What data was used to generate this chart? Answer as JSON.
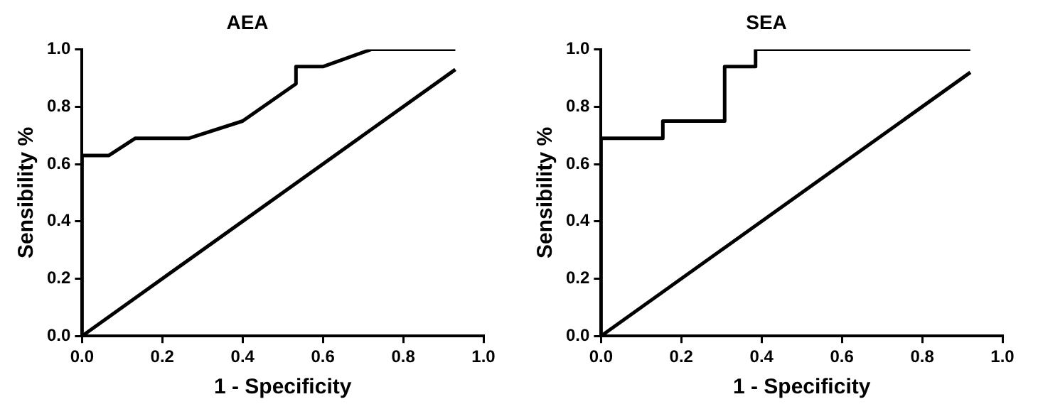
{
  "chart_data": [
    {
      "type": "line",
      "title": "AEA",
      "xlabel": "1 - Specificity",
      "ylabel": "Sensibility %",
      "xlim": [
        0,
        1
      ],
      "ylim": [
        0,
        1
      ],
      "xticks": [
        {
          "value": 0,
          "label": "0.0"
        },
        {
          "value": 0.2,
          "label": "0.2"
        },
        {
          "value": 0.4,
          "label": "0.4"
        },
        {
          "value": 0.6,
          "label": "0.6"
        },
        {
          "value": 0.8,
          "label": "0.8"
        },
        {
          "value": 1,
          "label": "1.0"
        }
      ],
      "yticks": [
        {
          "value": 0,
          "label": "0.0"
        },
        {
          "value": 0.2,
          "label": "0.2"
        },
        {
          "value": 0.4,
          "label": "0.4"
        },
        {
          "value": 0.6,
          "label": "0.6"
        },
        {
          "value": 0.8,
          "label": "0.8"
        },
        {
          "value": 1,
          "label": "1.0"
        }
      ],
      "grid": false,
      "legend": false,
      "marker": "none",
      "line_style": "solid",
      "series": [
        {
          "color": "#000000",
          "x": [
            0,
            0,
            0.067,
            0.133,
            0.267,
            0.4,
            0.533,
            0.533,
            0.6,
            0.72,
            0.93
          ],
          "values": [
            0,
            0.63,
            0.63,
            0.69,
            0.69,
            0.75,
            0.88,
            0.94,
            0.94,
            1,
            1
          ]
        },
        {
          "color": "#000000",
          "x": [
            0,
            0.93
          ],
          "values": [
            0,
            0.93
          ]
        }
      ]
    },
    {
      "type": "line",
      "title": "SEA",
      "xlabel": "1 - Specificity",
      "ylabel": "Sensibility %",
      "xlim": [
        0,
        1
      ],
      "ylim": [
        0,
        1
      ],
      "xticks": [
        {
          "value": 0,
          "label": "0.0"
        },
        {
          "value": 0.2,
          "label": "0.2"
        },
        {
          "value": 0.4,
          "label": "0.4"
        },
        {
          "value": 0.6,
          "label": "0.6"
        },
        {
          "value": 0.8,
          "label": "0.8"
        },
        {
          "value": 1,
          "label": "1.0"
        }
      ],
      "yticks": [
        {
          "value": 0,
          "label": "0.0"
        },
        {
          "value": 0.2,
          "label": "0.2"
        },
        {
          "value": 0.4,
          "label": "0.4"
        },
        {
          "value": 0.6,
          "label": "0.6"
        },
        {
          "value": 0.8,
          "label": "0.8"
        },
        {
          "value": 1,
          "label": "1.0"
        }
      ],
      "grid": false,
      "legend": false,
      "marker": "none",
      "line_style": "solid",
      "series": [
        {
          "color": "#000000",
          "x": [
            0,
            0,
            0.154,
            0.154,
            0.308,
            0.308,
            0.385,
            0.385,
            0.92
          ],
          "values": [
            0,
            0.69,
            0.69,
            0.75,
            0.75,
            0.94,
            0.94,
            1,
            1
          ]
        },
        {
          "color": "#000000",
          "x": [
            0,
            0.92
          ],
          "values": [
            0,
            0.92
          ]
        }
      ]
    }
  ]
}
